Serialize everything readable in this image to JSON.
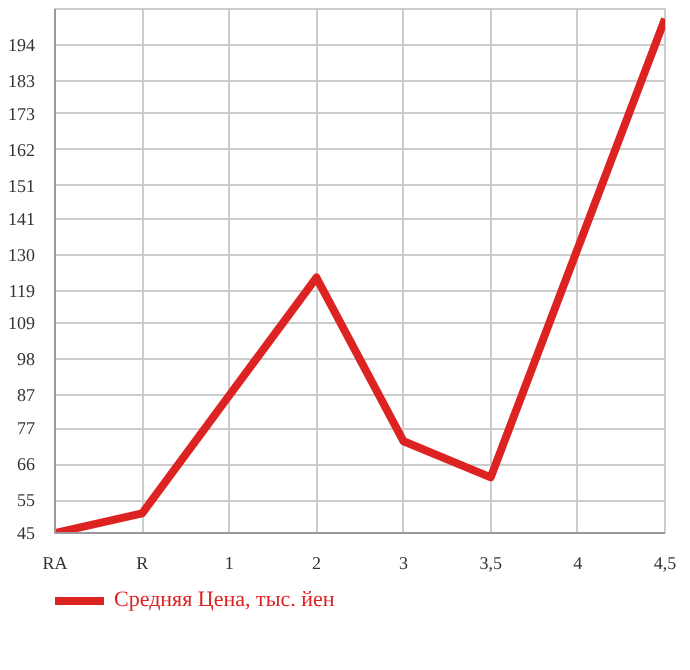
{
  "chart_data": {
    "type": "line",
    "categories": [
      "RA",
      "R",
      "1",
      "2",
      "3",
      "3,5",
      "4",
      "4,5"
    ],
    "series": [
      {
        "name": "Средняя Цена, тыс. йен",
        "color": "#dd2222",
        "values": [
          45,
          51,
          87,
          123,
          73,
          62,
          132,
          202
        ]
      }
    ],
    "ylim": [
      45,
      205
    ],
    "yticks": [
      45,
      55,
      66,
      77,
      87,
      98,
      109,
      119,
      130,
      141,
      151,
      162,
      173,
      183,
      194
    ],
    "grid": true,
    "legend": "bottom",
    "marker": "none",
    "line_style": "solid"
  }
}
